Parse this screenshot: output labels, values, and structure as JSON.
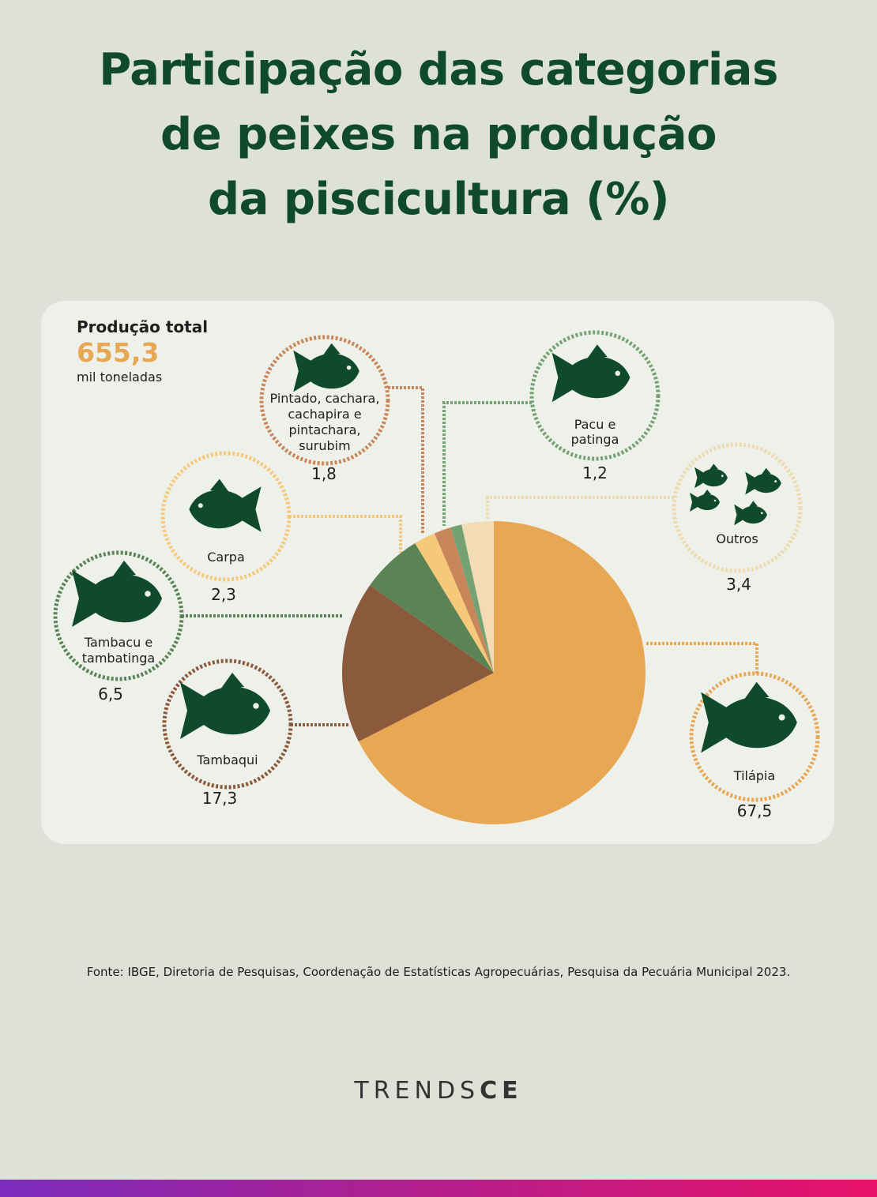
{
  "title_lines": [
    "Participação das categorias",
    "de peixes na produção",
    "da piscicultura (%)"
  ],
  "total": {
    "label": "Produção total",
    "value": "655,3",
    "unit": "mil toneladas"
  },
  "source": "Fonte: IBGE, Diretoria de Pesquisas, Coordenação de Estatísticas Agropecuárias, Pesquisa da Pecuária Municipal 2023.",
  "logo": {
    "light": "TRENDS",
    "bold": "CE"
  },
  "colors": {
    "title": "#0f4a2b",
    "fish": "#0f4a2b",
    "card": "#eef0ea",
    "background": "#dde1d8",
    "accent": "#e8a752"
  },
  "chart_data": {
    "type": "pie",
    "start": "12 o'clock, clockwise",
    "slices": [
      {
        "label": "Tilápia",
        "display": "67,5",
        "value": 67.5,
        "color": "#e8a752",
        "icon": "tilapia-fish-icon"
      },
      {
        "label": "Tambaqui",
        "display": "17,3",
        "value": 17.3,
        "color": "#8b5a3c",
        "icon": "tambaqui-fish-icon"
      },
      {
        "label": "Tambacu e tambatinga",
        "display": "6,5",
        "value": 6.5,
        "color": "#5a8456",
        "icon": "tambacu-fish-icon"
      },
      {
        "label": "Carpa",
        "display": "2,3",
        "value": 2.3,
        "color": "#f6c97a",
        "icon": "carp-fish-icon"
      },
      {
        "label": "Pintado, cachara, cachapira e pintachara, surubim",
        "display": "1,8",
        "value": 1.8,
        "color": "#c8865a",
        "icon": "catfish-icon"
      },
      {
        "label": "Pacu e patinga",
        "display": "1,2",
        "value": 1.2,
        "color": "#75a272",
        "icon": "pacu-fish-icon"
      },
      {
        "label": "Outros",
        "display": "3,4",
        "value": 3.4,
        "color": "#f3dcb5",
        "icon": "mixed-fish-icon"
      }
    ]
  }
}
